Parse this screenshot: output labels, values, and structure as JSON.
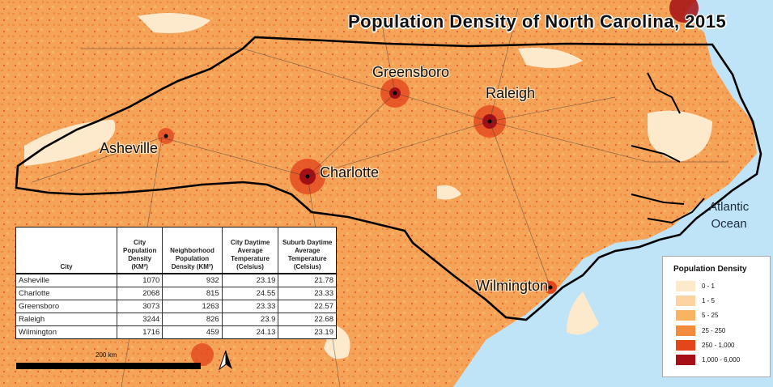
{
  "map": {
    "title": "Population Density of North Carolina, 2015",
    "cities": [
      {
        "name": "Greensboro"
      },
      {
        "name": "Raleigh"
      },
      {
        "name": "Asheville"
      },
      {
        "name": "Charlotte"
      },
      {
        "name": "Wilmington"
      }
    ],
    "ocean_label_line1": "Atlantic",
    "ocean_label_line2": "Ocean",
    "scale_label": "200 km",
    "north_arrow": "north-arrow-icon",
    "colors": {
      "ocean": "#bfe4f7",
      "land_base": "#f6a35a",
      "border": "#000000"
    }
  },
  "table": {
    "headers": [
      "City",
      "City Population Density (KM²)",
      "Neighborhood Population Density (KM²)",
      "City Daytime Average Temperature (Celsius)",
      "Suburb Daytime Average Temperature (Celsius)"
    ],
    "rows": [
      [
        "Asheville",
        "1070",
        "932",
        "23.19",
        "21.78"
      ],
      [
        "Charlotte",
        "2068",
        "815",
        "24.55",
        "23.33"
      ],
      [
        "Greensboro",
        "3073",
        "1263",
        "23.33",
        "22.57"
      ],
      [
        "Raleigh",
        "3244",
        "826",
        "23.9",
        "22.68"
      ],
      [
        "Wilmington",
        "1716",
        "459",
        "24.13",
        "23.19"
      ]
    ]
  },
  "legend": {
    "title": "Population Density",
    "items": [
      {
        "label": "0 - 1",
        "color": "#fde9cc"
      },
      {
        "label": "1 - 5",
        "color": "#fcd3a1"
      },
      {
        "label": "5 - 25",
        "color": "#f9b462"
      },
      {
        "label": "25 - 250",
        "color": "#f48b3c"
      },
      {
        "label": "250 - 1,000",
        "color": "#e4461c"
      },
      {
        "label": "1,000 - 6,000",
        "color": "#a50f15"
      }
    ]
  }
}
